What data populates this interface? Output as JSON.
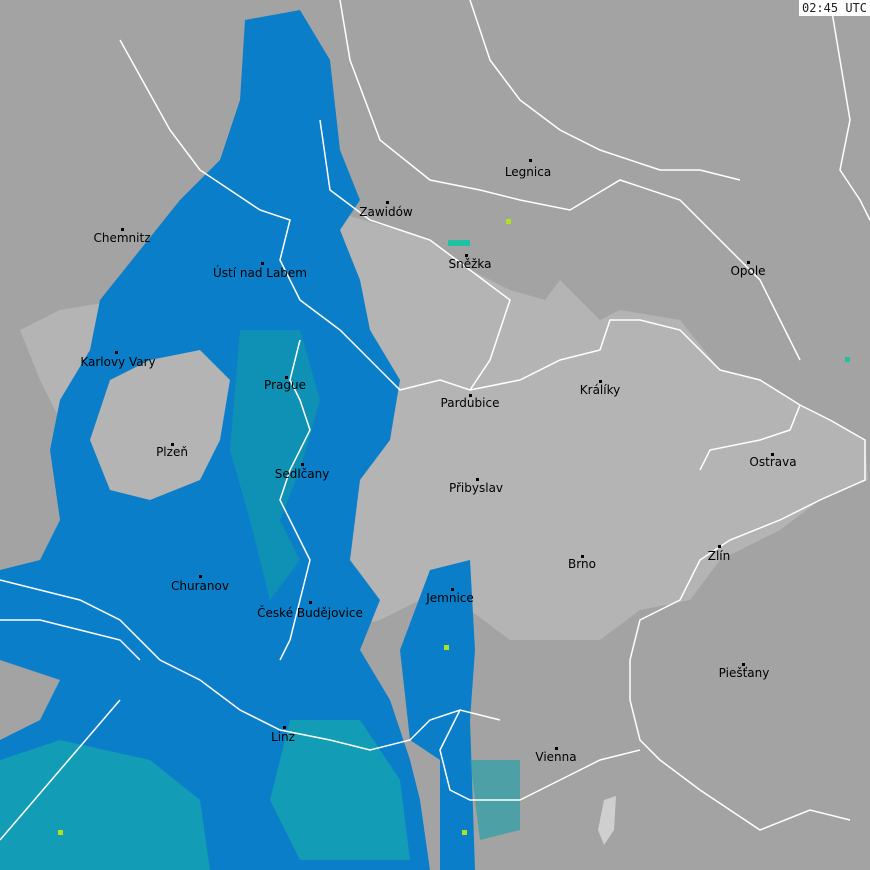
{
  "timestamp": "02:45 UTC",
  "colors": {
    "background": "#a3a3a3",
    "highlight_region": "#b4b4b4",
    "radar_light": "#0a7ec8",
    "radar_medium": "#14a0a8",
    "radar_strong": "#20c0a0",
    "radar_peak": "#b0e020",
    "borders": "#ffffff"
  },
  "cities": [
    {
      "name": "Legnica"
    },
    {
      "name": "Zawidów"
    },
    {
      "name": "Chemnitz"
    },
    {
      "name": "Sněžka"
    },
    {
      "name": "Opole"
    },
    {
      "name": "Ústí nad Labem"
    },
    {
      "name": "Karlovy Vary"
    },
    {
      "name": "Prague"
    },
    {
      "name": "Pardubice"
    },
    {
      "name": "Králíky"
    },
    {
      "name": "Plzeň"
    },
    {
      "name": "Ostrava"
    },
    {
      "name": "Sedlčany"
    },
    {
      "name": "Přibyslav"
    },
    {
      "name": "Zlín"
    },
    {
      "name": "Brno"
    },
    {
      "name": "Churanov"
    },
    {
      "name": "Jemnice"
    },
    {
      "name": "České Budějovice"
    },
    {
      "name": "Piešťany"
    },
    {
      "name": "Linz"
    },
    {
      "name": "Vienna"
    }
  ]
}
